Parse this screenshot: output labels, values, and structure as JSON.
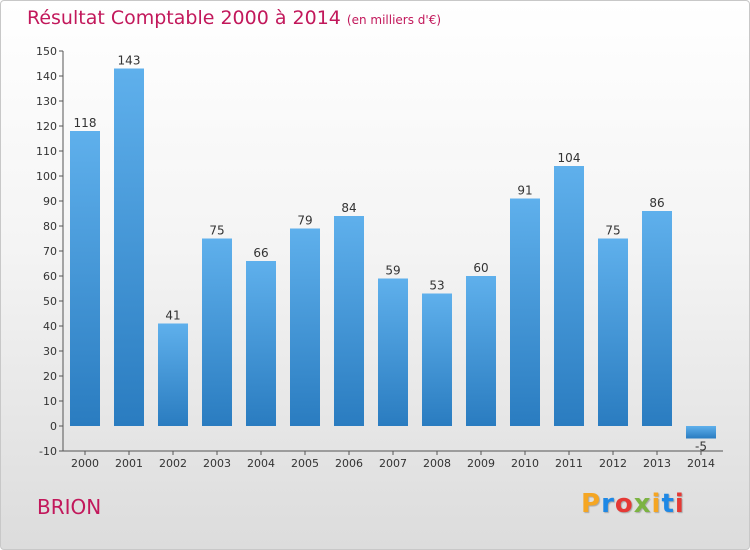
{
  "title": "Résultat Comptable 2000 à 2014",
  "unit_note": "(en milliers d'€)",
  "location": "BRION",
  "logo": {
    "letters": [
      "P",
      "r",
      "o",
      "x",
      "i",
      "t",
      "i"
    ],
    "colors": [
      "#f5a623",
      "#1e88e5",
      "#e53935",
      "#7cb342",
      "#f5a623",
      "#1e88e5",
      "#e53935"
    ]
  },
  "colors": {
    "title": "#c2185b",
    "bar_top": "#5fb0ec",
    "bar_bottom": "#2a7cc0"
  },
  "chart_data": {
    "type": "bar",
    "title": "Résultat Comptable 2000 à 2014",
    "categories": [
      "2000",
      "2001",
      "2002",
      "2003",
      "2004",
      "2005",
      "2006",
      "2007",
      "2008",
      "2009",
      "2010",
      "2011",
      "2012",
      "2013",
      "2014"
    ],
    "values": [
      118,
      143,
      41,
      75,
      66,
      79,
      84,
      59,
      53,
      60,
      91,
      104,
      75,
      86,
      -5
    ],
    "ylim": [
      -10,
      150
    ],
    "yticks": [
      -10,
      0,
      10,
      20,
      30,
      40,
      50,
      60,
      70,
      80,
      90,
      100,
      110,
      120,
      130,
      140,
      150
    ],
    "grid": false,
    "xlabel": "",
    "ylabel": ""
  }
}
